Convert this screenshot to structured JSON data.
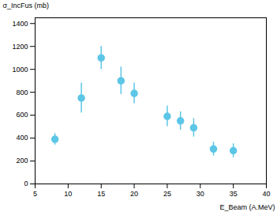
{
  "chart_data": {
    "type": "scatter",
    "x_label": "E_Beam (A.MeV)",
    "y_label": "σ_IncFus (mb)",
    "x": [
      8,
      12,
      15,
      18,
      20,
      25,
      27,
      29,
      32,
      35
    ],
    "values": [
      390,
      750,
      1100,
      900,
      790,
      590,
      550,
      490,
      305,
      290
    ],
    "errors": [
      50,
      130,
      100,
      120,
      90,
      90,
      80,
      80,
      60,
      60
    ],
    "color": "#5cc6e6",
    "marker": "circle",
    "xlim": [
      5,
      40
    ],
    "xticks": [
      5,
      10,
      15,
      20,
      25,
      30,
      35,
      40
    ],
    "ylim": [
      0,
      1450
    ],
    "yticks": [
      0,
      200,
      400,
      600,
      800,
      1000,
      1200,
      1400
    ],
    "grid": false
  }
}
